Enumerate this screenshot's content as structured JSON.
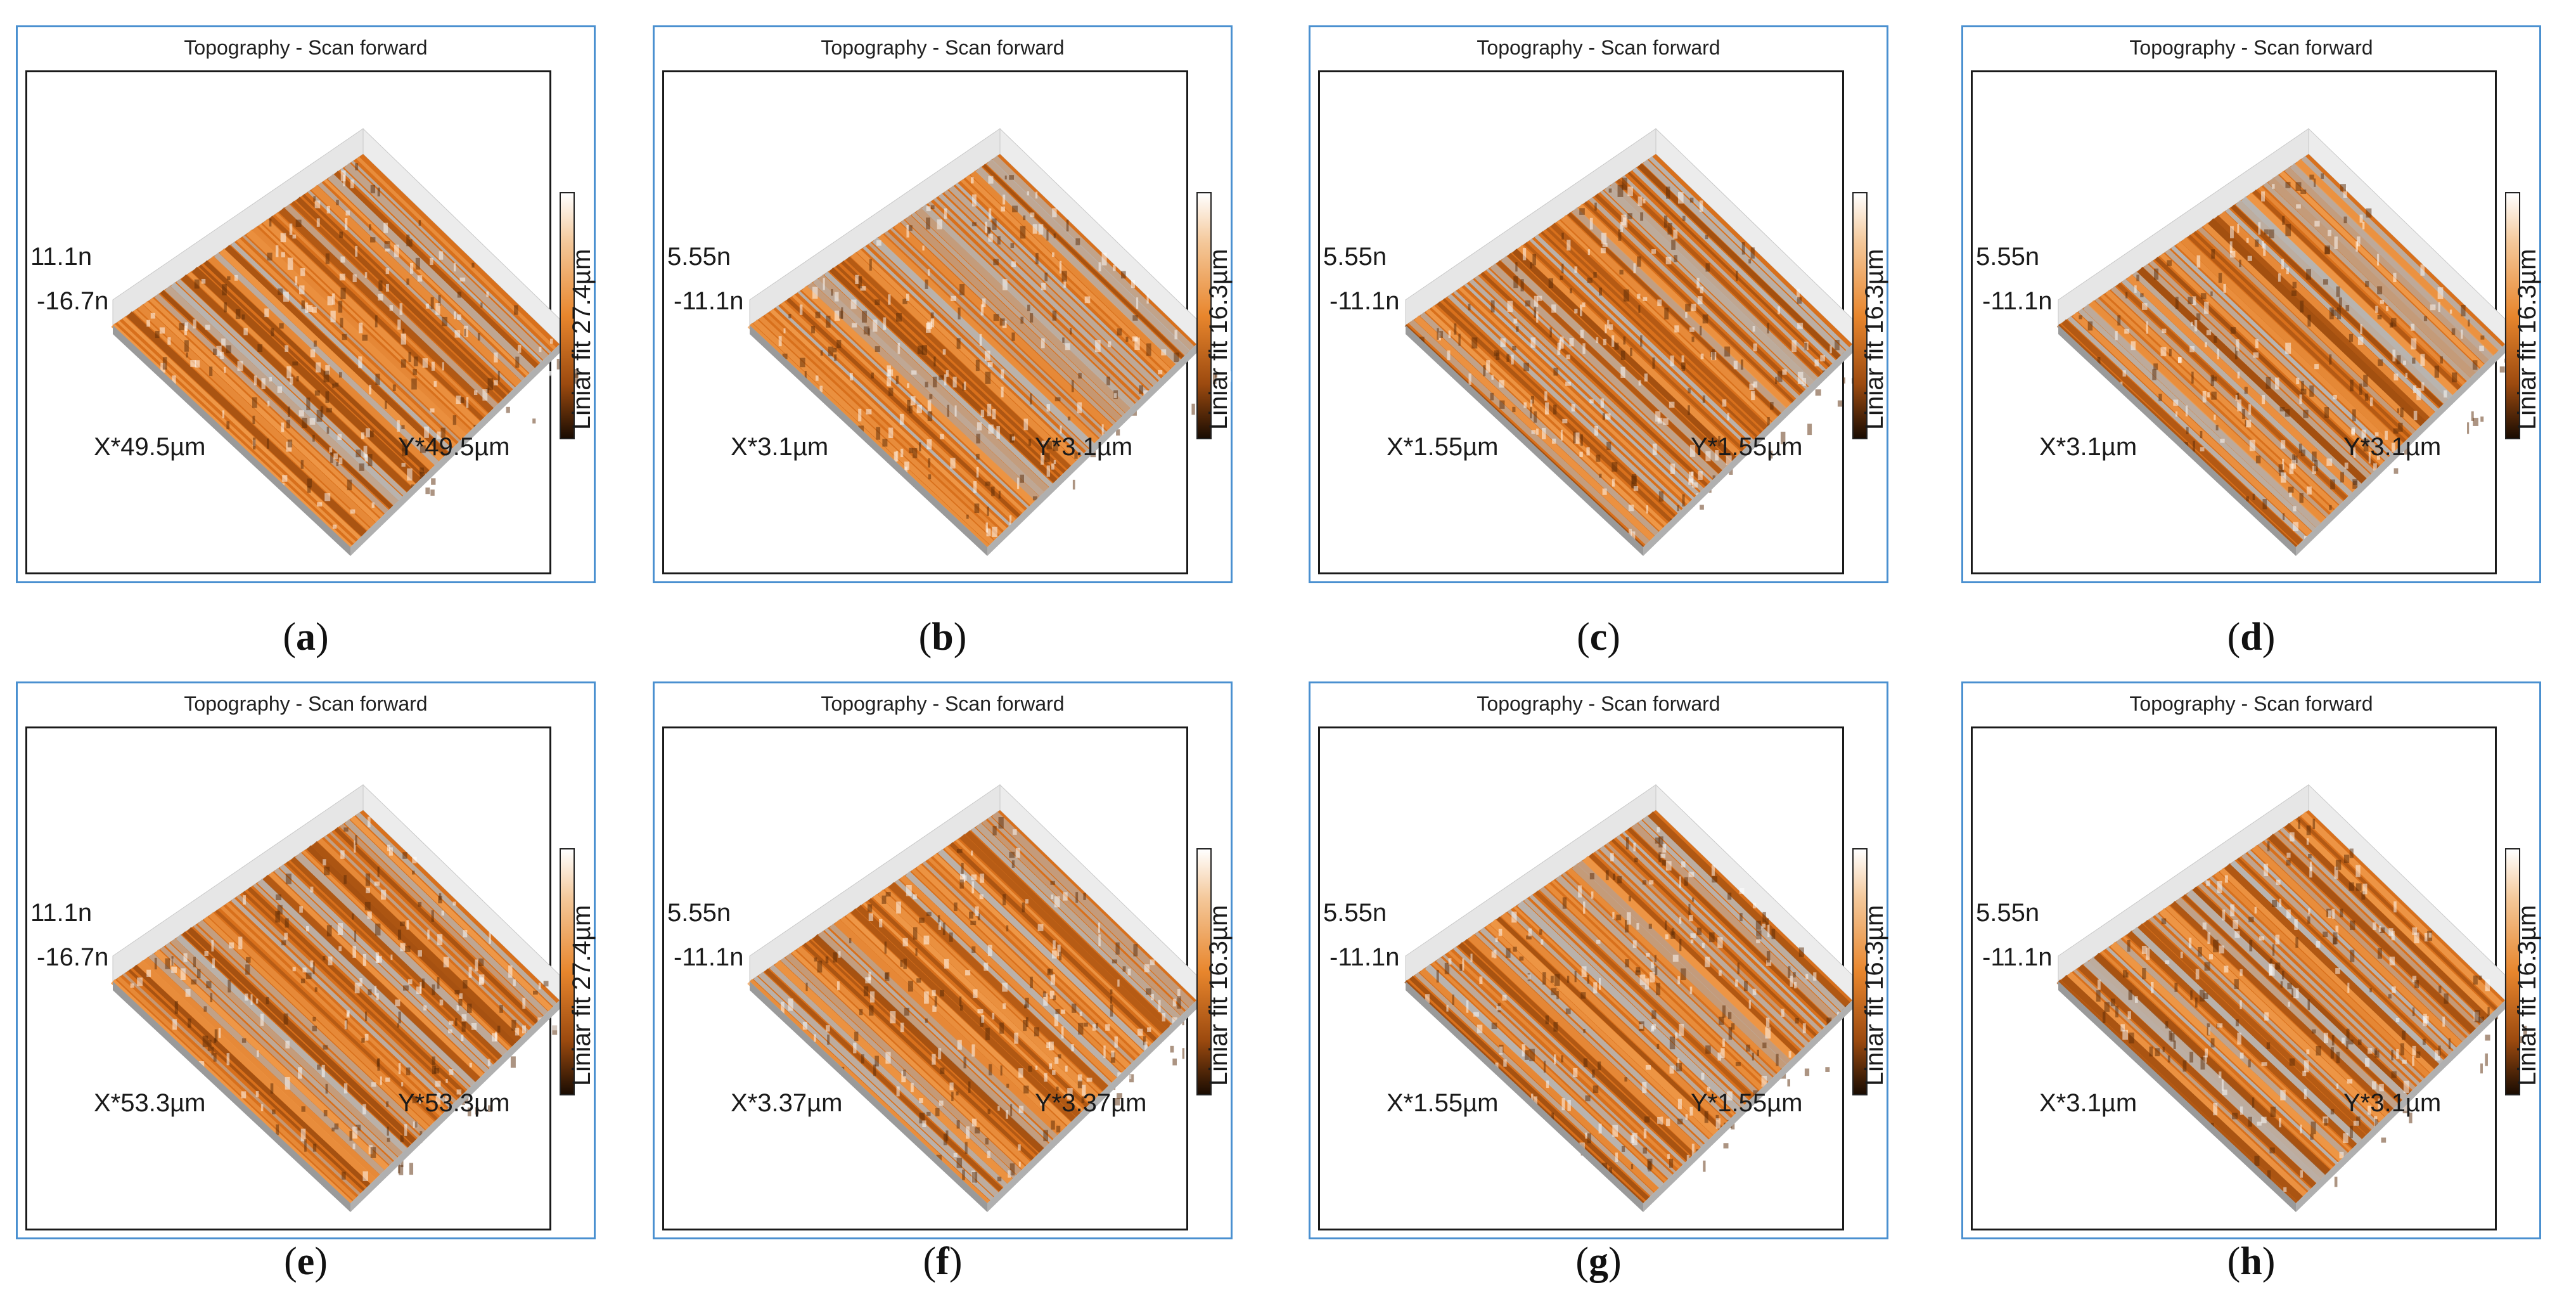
{
  "figure": {
    "panels": [
      {
        "letter": "a",
        "title": "Topography - Scan forward",
        "z_top": "11.1n",
        "z_bottom": "-16.7n",
        "x_label": "X*49.5µm",
        "y_label": "Y*49.5µm",
        "colorbar_label": "Liniar fit 27.4µm"
      },
      {
        "letter": "b",
        "title": "Topography - Scan forward",
        "z_top": "5.55n",
        "z_bottom": "-11.1n",
        "x_label": "X*3.1µm",
        "y_label": "Y*3.1µm",
        "colorbar_label": "Liniar fit 16.3µm"
      },
      {
        "letter": "c",
        "title": "Topography - Scan forward",
        "z_top": "5.55n",
        "z_bottom": "-11.1n",
        "x_label": "X*1.55µm",
        "y_label": "Y*1.55µm",
        "colorbar_label": "Liniar fit 16.3µm"
      },
      {
        "letter": "d",
        "title": "Topography - Scan forward",
        "z_top": "5.55n",
        "z_bottom": "-11.1n",
        "x_label": "X*3.1µm",
        "y_label": "Y*3.1µm",
        "colorbar_label": "Liniar fit 16.3µm"
      },
      {
        "letter": "e",
        "title": "Topography - Scan forward",
        "z_top": "11.1n",
        "z_bottom": "-16.7n",
        "x_label": "X*53.3µm",
        "y_label": "Y*53.3µm",
        "colorbar_label": "Liniar fit 27.4µm"
      },
      {
        "letter": "f",
        "title": "Topography - Scan forward",
        "z_top": "5.55n",
        "z_bottom": "-11.1n",
        "x_label": "X*3.37µm",
        "y_label": "Y*3.37µm",
        "colorbar_label": "Liniar fit 16.3µm"
      },
      {
        "letter": "g",
        "title": "Topography - Scan forward",
        "z_top": "5.55n",
        "z_bottom": "-11.1n",
        "x_label": "X*1.55µm",
        "y_label": "Y*1.55µm",
        "colorbar_label": "Liniar fit 16.3µm"
      },
      {
        "letter": "h",
        "title": "Topography - Scan forward",
        "z_top": "5.55n",
        "z_bottom": "-11.1n",
        "x_label": "X*3.1µm",
        "y_label": "Y*3.1µm",
        "colorbar_label": "Liniar fit 16.3µm"
      }
    ],
    "colors": {
      "panel_border": "#4a90d0",
      "surface_orange": "#d8701c",
      "surface_grey": "#b8b8b8"
    }
  }
}
